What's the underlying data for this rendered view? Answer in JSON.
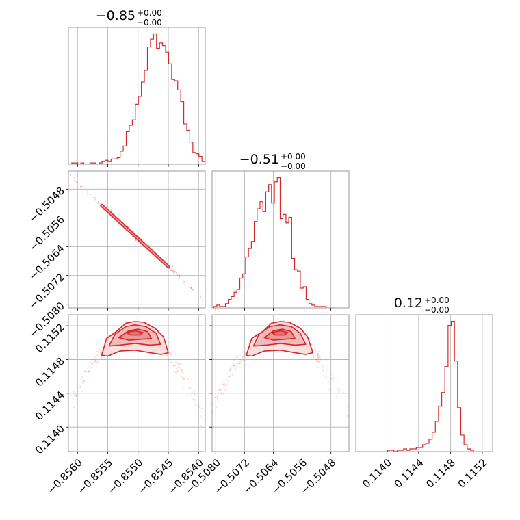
{
  "chart_data": {
    "type": "corner",
    "color": "#d62728",
    "grid": true,
    "panels": [
      {
        "id": "hist-0",
        "type": "histogram",
        "row": 0,
        "col": 0,
        "title": {
          "main": "−0.85",
          "upper": "+0.00",
          "lower": "−0.00"
        },
        "xlim": [
          -85615,
          -85389
        ],
        "xticks": [
          -85600,
          -85550,
          -85500,
          -85450,
          -85400
        ],
        "xscale": 100000,
        "xlabels_shown": false,
        "bin_start": -85609.5,
        "bin_width": 5,
        "counts": [
          1,
          1,
          0,
          1,
          0,
          0,
          1,
          1,
          0,
          1,
          2,
          3,
          2,
          4,
          4,
          5,
          10,
          14,
          25,
          30,
          34,
          46,
          52,
          63,
          72,
          90,
          96,
          100,
          89,
          93,
          91,
          86,
          77,
          65,
          64,
          57,
          48,
          31,
          26,
          17,
          9,
          8,
          6,
          2,
          1,
          1
        ]
      },
      {
        "id": "scatter-1-0",
        "type": "scatter",
        "row": 1,
        "col": 0,
        "x_var": 0,
        "y_var": 1,
        "xlim": [
          -85615,
          -85389
        ],
        "ylim": [
          -5081,
          -5043
        ],
        "xticks": [
          -85600,
          -85550,
          -85500,
          -85450,
          -85400
        ],
        "yticks": [
          -5080,
          -5072,
          -5064,
          -5056,
          -5048
        ],
        "xscale": 100000,
        "yscale": 10000,
        "ylabels": [
          "−0.5080",
          "−0.5072",
          "−0.5064",
          "−0.5056",
          "−0.5048"
        ],
        "xlabels_shown": false,
        "relation": {
          "type": "linear",
          "x0": -85612,
          "y0": -5044.5,
          "x1": -85392,
          "y1": -5078.5,
          "spread": 0.35
        },
        "density_center": {
          "x": -85505,
          "y": -5061.0
        },
        "density_span": [
          -85560,
          -85450
        ]
      },
      {
        "id": "hist-1",
        "type": "histogram",
        "row": 1,
        "col": 1,
        "title": {
          "main": "−0.51",
          "upper": "+0.00",
          "lower": "−0.00"
        },
        "xlim": [
          -5081,
          -5043
        ],
        "xticks": [
          -5080,
          -5072,
          -5064,
          -5056,
          -5048
        ],
        "xscale": 10000,
        "xlabels_shown": false,
        "bin_start": -5080.5,
        "bin_width": 0.8,
        "counts": [
          1,
          2,
          1,
          1,
          3,
          6,
          8,
          11,
          13,
          21,
          24,
          36,
          42,
          47,
          61,
          70,
          75,
          68,
          82,
          87,
          74,
          89,
          92,
          63,
          66,
          60,
          64,
          35,
          27,
          26,
          14,
          15,
          6,
          3,
          2,
          1,
          1,
          1,
          1
        ]
      },
      {
        "id": "contour-2-0",
        "type": "density_contour",
        "row": 2,
        "col": 0,
        "x_var": 0,
        "y_var": 2,
        "xlim": [
          -85615,
          -85389
        ],
        "ylim": [
          11371,
          11533
        ],
        "xticks": [
          -85600,
          -85550,
          -85500,
          -85450,
          -85400
        ],
        "yticks": [
          11400,
          11440,
          11480,
          11520
        ],
        "xscale": 100000,
        "yscale": 100000,
        "xlabels": [
          "−0.8560",
          "−0.8555",
          "−0.8550",
          "−0.8545",
          "−0.8540"
        ],
        "ylabels": [
          "0.1140",
          "0.1144",
          "0.1148",
          "0.1152"
        ],
        "arch": {
          "center": -85506,
          "half_width": 105,
          "peak": 11515,
          "drop": 85
        },
        "contours": [
          {
            "level": 3,
            "points": [
              [
                -85560,
                11485
              ],
              [
                -85552,
                11505
              ],
              [
                -85536,
                11513
              ],
              [
                -85520,
                11523
              ],
              [
                -85505,
                11525
              ],
              [
                -85490,
                11524
              ],
              [
                -85472,
                11517
              ],
              [
                -85458,
                11507
              ],
              [
                -85450,
                11488
              ],
              [
                -85462,
                11486
              ],
              [
                -85480,
                11488
              ],
              [
                -85505,
                11491
              ],
              [
                -85530,
                11490
              ],
              [
                -85550,
                11484
              ]
            ]
          },
          {
            "level": 2,
            "points": [
              [
                -85548,
                11496
              ],
              [
                -85538,
                11510
              ],
              [
                -85520,
                11519
              ],
              [
                -85505,
                11521
              ],
              [
                -85487,
                11519
              ],
              [
                -85470,
                11511
              ],
              [
                -85463,
                11498
              ],
              [
                -85480,
                11497
              ],
              [
                -85505,
                11499
              ],
              [
                -85530,
                11497
              ]
            ]
          },
          {
            "level": 1,
            "points": [
              [
                -85532,
                11506
              ],
              [
                -85515,
                11514
              ],
              [
                -85500,
                11516
              ],
              [
                -85484,
                11513
              ],
              [
                -85478,
                11505
              ],
              [
                -85495,
                11504
              ],
              [
                -85515,
                11503
              ]
            ]
          },
          {
            "level": 0,
            "points": [
              [
                -85520,
                11512
              ],
              [
                -85505,
                11514
              ],
              [
                -85492,
                11512
              ],
              [
                -85497,
                11509
              ],
              [
                -85512,
                11509
              ]
            ]
          }
        ]
      },
      {
        "id": "contour-2-1",
        "type": "density_contour",
        "row": 2,
        "col": 1,
        "x_var": 1,
        "y_var": 2,
        "xlim": [
          -5081,
          -5043
        ],
        "ylim": [
          11371,
          11533
        ],
        "xticks": [
          -5080,
          -5072,
          -5064,
          -5056,
          -5048
        ],
        "yticks": [
          11400,
          11440,
          11480,
          11520
        ],
        "xscale": 10000,
        "yscale": 100000,
        "xlabels": [
          "−0.5080",
          "−0.5072",
          "−0.5064",
          "−0.5056",
          "−0.5048"
        ],
        "ylabels_shown": false,
        "arch": {
          "center": -5062.4,
          "half_width": 18,
          "peak": 11515,
          "drop": 85
        },
        "contours": [
          {
            "level": 3,
            "points": [
              [
                -5071.5,
                11485
              ],
              [
                -5070,
                11505
              ],
              [
                -5067,
                11513
              ],
              [
                -5064.5,
                11523
              ],
              [
                -5062,
                11525
              ],
              [
                -5059.5,
                11524
              ],
              [
                -5056.5,
                11517
              ],
              [
                -5054.5,
                11507
              ],
              [
                -5053,
                11488
              ],
              [
                -5055,
                11486
              ],
              [
                -5058,
                11488
              ],
              [
                -5062,
                11491
              ],
              [
                -5066.5,
                11490
              ],
              [
                -5070,
                11484
              ]
            ]
          },
          {
            "level": 2,
            "points": [
              [
                -5069.5,
                11496
              ],
              [
                -5068,
                11510
              ],
              [
                -5065,
                11519
              ],
              [
                -5062,
                11521
              ],
              [
                -5059,
                11519
              ],
              [
                -5056.5,
                11511
              ],
              [
                -5055,
                11498
              ],
              [
                -5058,
                11497
              ],
              [
                -5062,
                11499
              ],
              [
                -5066,
                11497
              ]
            ]
          },
          {
            "level": 1,
            "points": [
              [
                -5066.5,
                11506
              ],
              [
                -5064,
                11514
              ],
              [
                -5061.5,
                11516
              ],
              [
                -5059,
                11513
              ],
              [
                -5058,
                11505
              ],
              [
                -5061,
                11504
              ],
              [
                -5064,
                11503
              ]
            ]
          },
          {
            "level": 0,
            "points": [
              [
                -5064.5,
                11512
              ],
              [
                -5062,
                11514
              ],
              [
                -5060,
                11512
              ],
              [
                -5061,
                11509
              ],
              [
                -5063.5,
                11509
              ]
            ]
          }
        ]
      },
      {
        "id": "hist-2",
        "type": "histogram",
        "row": 2,
        "col": 2,
        "title": {
          "main": "0.12",
          "upper": "+0.00",
          "lower": "−0.00"
        },
        "xlim": [
          11361,
          11533
        ],
        "xticks": [
          11400,
          11440,
          11480,
          11520
        ],
        "xscale": 100000,
        "xlabels": [
          "0.1140",
          "0.1144",
          "0.1148",
          "0.1152"
        ],
        "bin_start": 11401,
        "bin_width": 4,
        "counts": [
          1,
          1,
          0,
          1,
          1,
          2,
          1,
          2,
          2,
          3,
          3,
          5,
          6,
          9,
          14,
          22,
          33,
          43,
          62,
          92,
          95,
          66,
          32,
          12,
          5,
          2,
          1
        ]
      }
    ]
  }
}
